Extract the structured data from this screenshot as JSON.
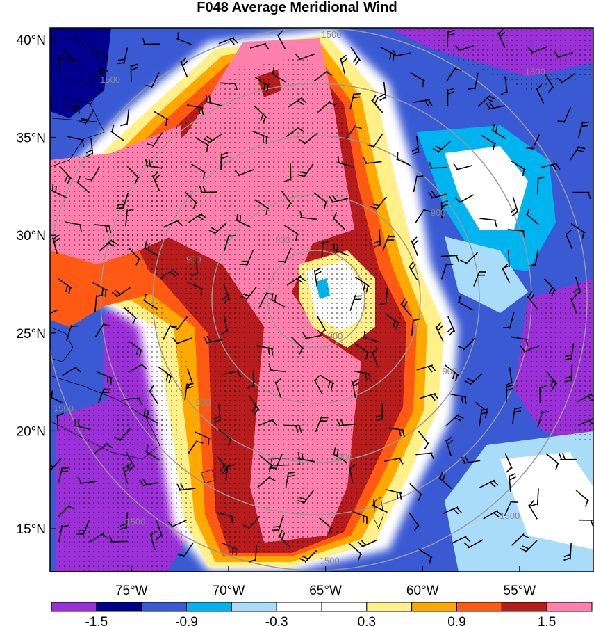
{
  "chart_data": {
    "type": "heatmap",
    "title": "F048 Average Meridional Wind",
    "x_ticks": [
      {
        "label": "75°W",
        "lon": -75
      },
      {
        "label": "70°W",
        "lon": -70
      },
      {
        "label": "65°W",
        "lon": -65
      },
      {
        "label": "60°W",
        "lon": -60
      },
      {
        "label": "55°W",
        "lon": -55
      }
    ],
    "y_ticks": [
      {
        "label": "40°N",
        "lat": 40
      },
      {
        "label": "35°N",
        "lat": 35
      },
      {
        "label": "30°N",
        "lat": 30
      },
      {
        "label": "25°N",
        "lat": 25
      },
      {
        "label": "20°N",
        "lat": 20
      },
      {
        "label": "15°N",
        "lat": 15
      }
    ],
    "xlim": [
      -79.2,
      -51.2
    ],
    "ylim": [
      12.8,
      40.6
    ],
    "colorbar": {
      "colors": [
        "#9b30d8",
        "#00008f",
        "#3a5ad4",
        "#00b4f0",
        "#a8dcf8",
        "#ffffff",
        "#ffffff",
        "#fff08a",
        "#ffa800",
        "#ff5a14",
        "#b81c1c",
        "#ff80ac"
      ],
      "tick_labels": [
        "-1.5",
        "-0.9",
        "-0.3",
        "0.3",
        "0.9",
        "1.5"
      ],
      "tick_positions": [
        1,
        3,
        5,
        7,
        9,
        11
      ]
    },
    "contour_labels": [
      {
        "text": "1500",
        "lon": -64.7,
        "lat": 40.1
      },
      {
        "text": "1500",
        "lon": -76.1,
        "lat": 37.8
      },
      {
        "text": "1500",
        "lon": -54.2,
        "lat": 38.2
      },
      {
        "text": "900",
        "lon": -59.2,
        "lat": 31.0
      },
      {
        "text": "900",
        "lon": -71.8,
        "lat": 28.6
      },
      {
        "text": "900",
        "lon": -67.2,
        "lat": 29.6
      },
      {
        "text": "900",
        "lon": -64.5,
        "lat": 24.7
      },
      {
        "text": "900",
        "lon": -58.6,
        "lat": 22.9
      },
      {
        "text": "900",
        "lon": -71.3,
        "lat": 21.3
      },
      {
        "text": "900",
        "lon": -64.0,
        "lat": 18.5
      },
      {
        "text": "1500",
        "lon": -78.5,
        "lat": 21.0
      },
      {
        "text": "1500",
        "lon": -74.8,
        "lat": 15.2
      },
      {
        "text": "1500",
        "lon": -64.8,
        "lat": 13.2
      },
      {
        "text": "1500",
        "lon": -55.5,
        "lat": 15.5
      }
    ]
  }
}
